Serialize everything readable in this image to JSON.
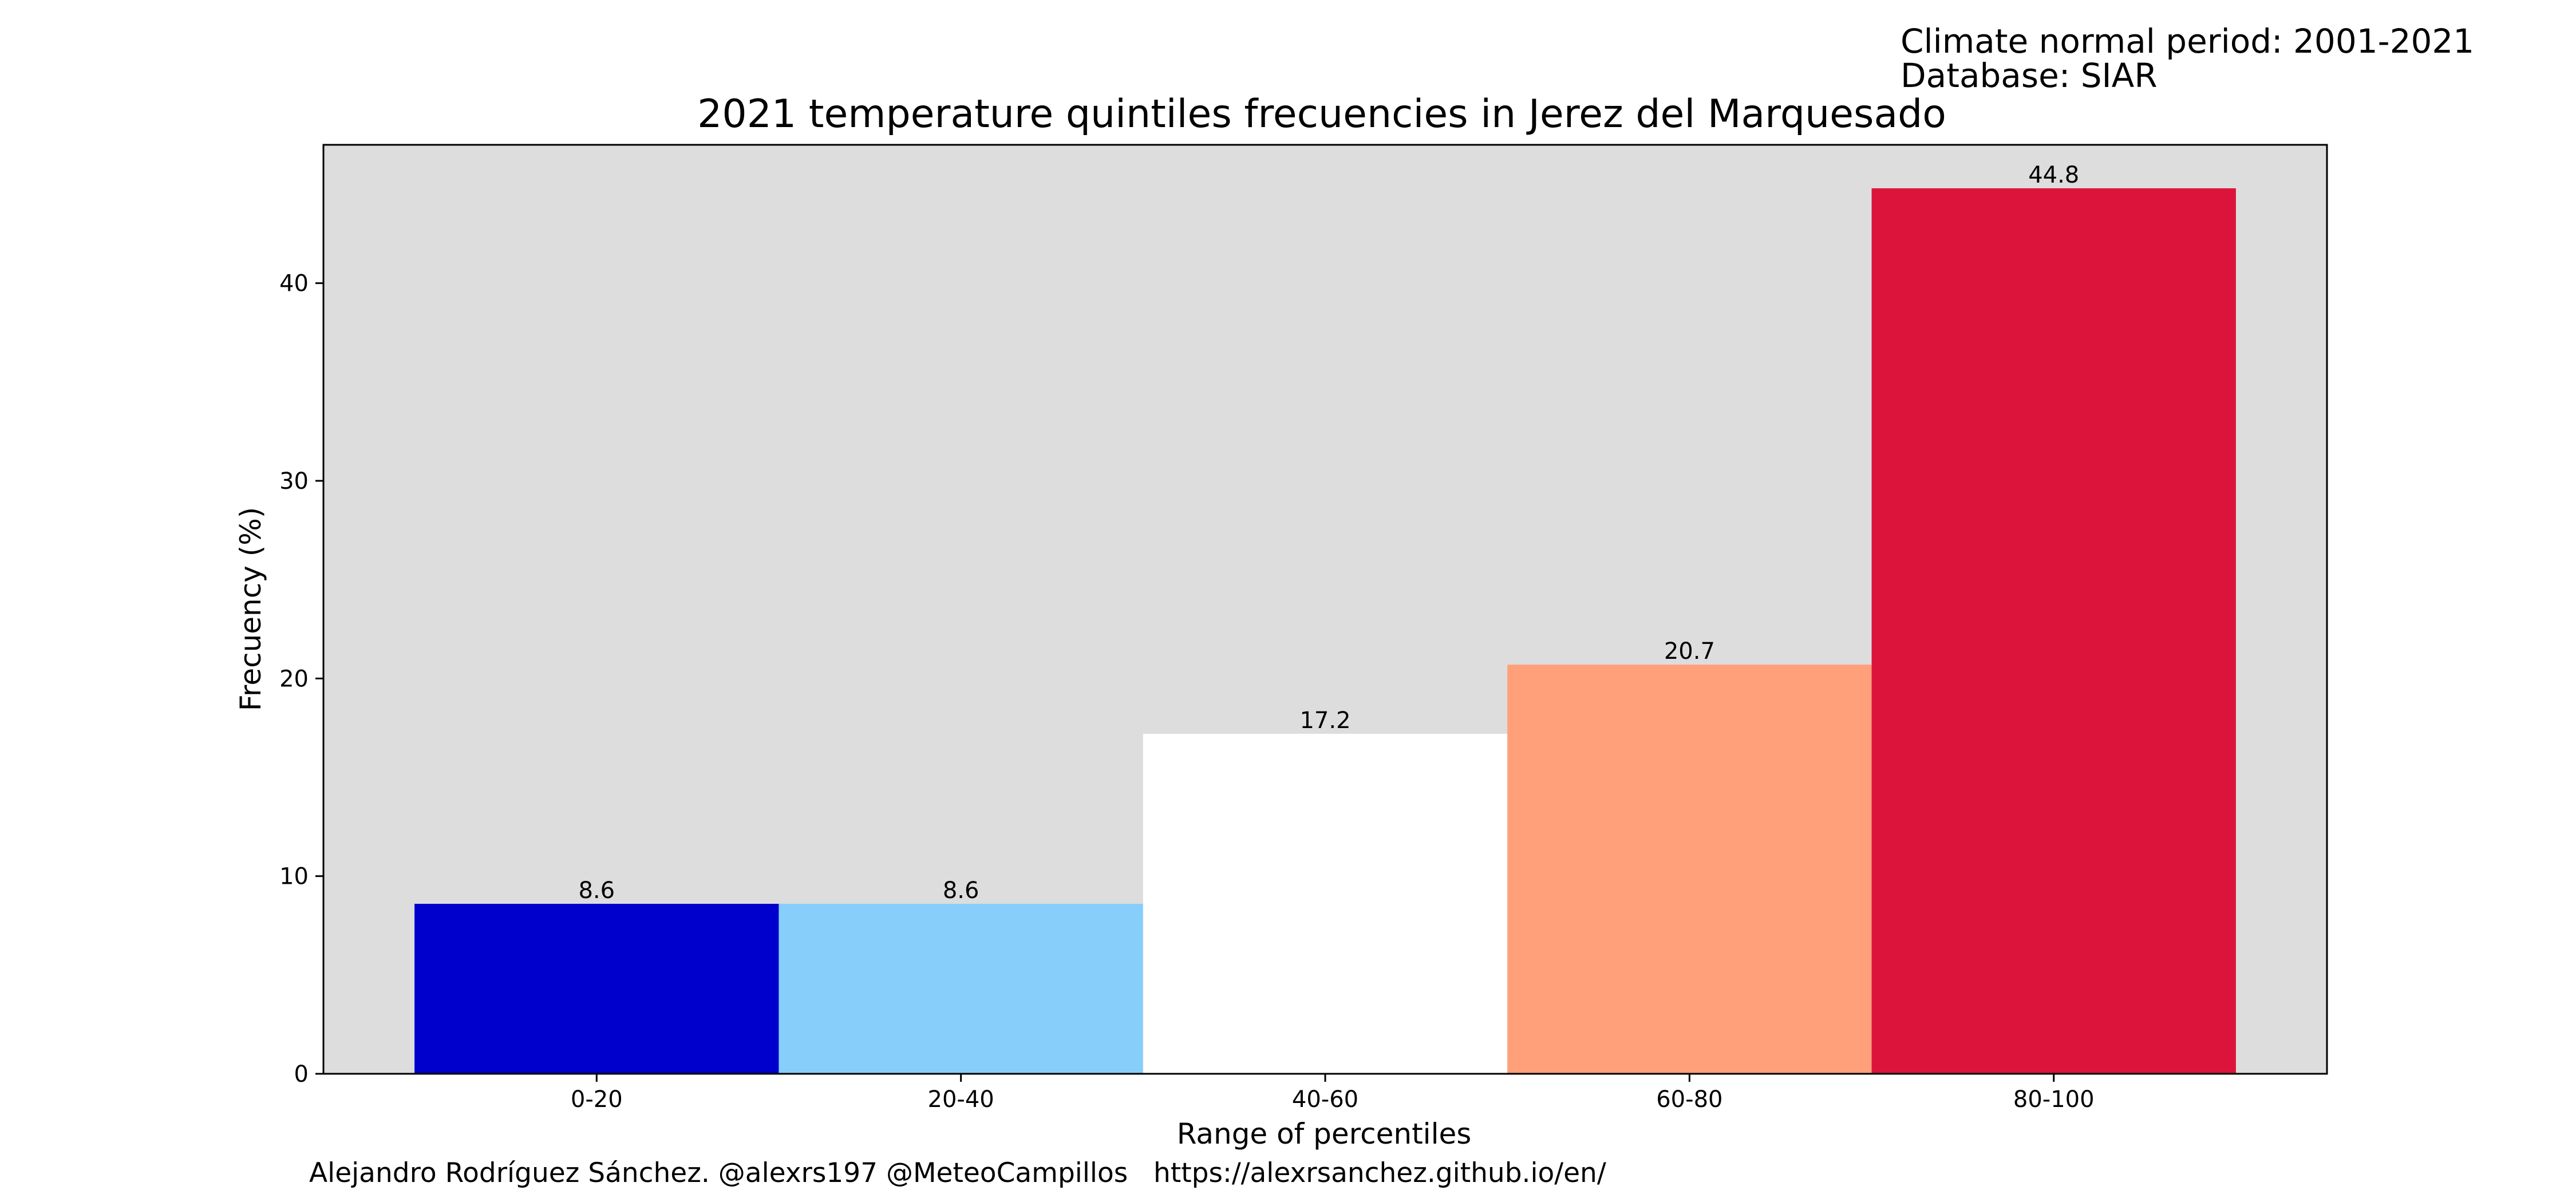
{
  "chart_data": {
    "type": "bar",
    "title": "2021 temperature quintiles frecuencies in Jerez del Marquesado",
    "xlabel": "Range of percentiles",
    "ylabel": "Frecuency (%)",
    "categories": [
      "0-20",
      "20-40",
      "40-60",
      "60-80",
      "80-100"
    ],
    "values": [
      8.6,
      8.6,
      17.2,
      20.7,
      44.8
    ],
    "value_labels": [
      "8.6",
      "8.6",
      "17.2",
      "20.7",
      "44.8"
    ],
    "bar_colors": [
      "#0000cd",
      "#87cefa",
      "#ffffff",
      "#ffa07a",
      "#dc143c"
    ],
    "ylim": [
      0,
      47
    ],
    "xlim": [
      -0.75,
      4.75
    ],
    "yticks": [
      0,
      10,
      20,
      30,
      40
    ],
    "ytick_labels": [
      "0",
      "10",
      "20",
      "30",
      "40"
    ],
    "grid": false,
    "legend": "none",
    "plot_background": "#dddddd"
  },
  "header_note": {
    "line1": "Climate normal period: 2001-2021",
    "line2": "Database: SIAR"
  },
  "footer": {
    "credit": "Alejandro Rodríguez Sánchez. @alexrs197 @MeteoCampillos   https://alexrsanchez.github.io/en/"
  }
}
